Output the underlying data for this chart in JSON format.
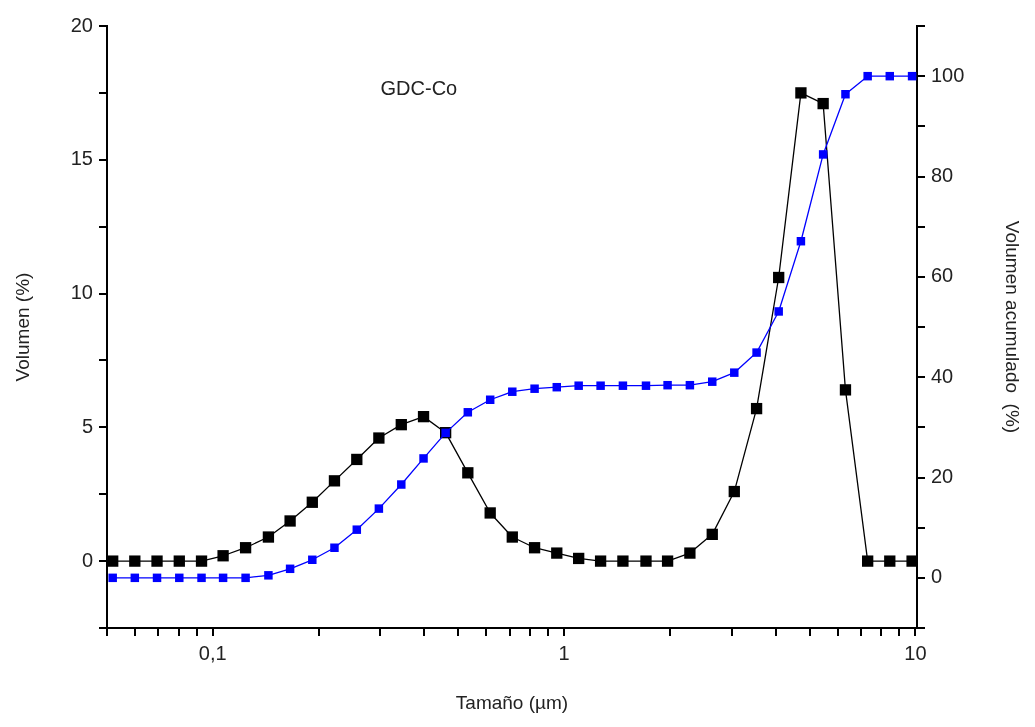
{
  "chart_data": {
    "type": "line",
    "xlabel": "Tamaño (µm)",
    "ylabel": "Volumen (%)",
    "y2label": "Volumen acumulado  (%)",
    "annotations": [
      "GDC-Co"
    ],
    "log": "x",
    "grid": false,
    "legend": false,
    "marker": "square",
    "line_style": "solid",
    "xlim": [
      0.05,
      10.1
    ],
    "xticks": [
      {
        "value": 0.05,
        "label": null
      },
      {
        "value": 0.06,
        "label": null
      },
      {
        "value": 0.07,
        "label": null
      },
      {
        "value": 0.08,
        "label": null
      },
      {
        "value": 0.09,
        "label": null
      },
      {
        "value": 0.1,
        "label": "0,1"
      },
      {
        "value": 0.2,
        "label": null
      },
      {
        "value": 0.3,
        "label": null
      },
      {
        "value": 0.4,
        "label": null
      },
      {
        "value": 0.5,
        "label": null
      },
      {
        "value": 0.6,
        "label": null
      },
      {
        "value": 0.7,
        "label": null
      },
      {
        "value": 0.8,
        "label": null
      },
      {
        "value": 0.9,
        "label": null
      },
      1,
      {
        "value": 2,
        "label": null
      },
      {
        "value": 3,
        "label": null
      },
      {
        "value": 4,
        "label": null
      },
      {
        "value": 5,
        "label": null
      },
      {
        "value": 6,
        "label": null
      },
      {
        "value": 7,
        "label": null
      },
      {
        "value": 8,
        "label": null
      },
      {
        "value": 9,
        "label": null
      },
      10
    ],
    "ylim": [
      -2.5,
      20
    ],
    "yticks": [
      {
        "value": -2.5,
        "label": null
      },
      0,
      {
        "value": 2.5,
        "label": null
      },
      5,
      {
        "value": 7.5,
        "label": null
      },
      10,
      {
        "value": 12.5,
        "label": null
      },
      15,
      {
        "value": 17.5,
        "label": null
      },
      20
    ],
    "y2lim": [
      -10,
      110
    ],
    "y2ticks": [
      {
        "value": -10,
        "label": null
      },
      0,
      {
        "value": 10,
        "label": null
      },
      20,
      {
        "value": 30,
        "label": null
      },
      40,
      {
        "value": 50,
        "label": null
      },
      60,
      {
        "value": 70,
        "label": null
      },
      80,
      {
        "value": 90,
        "label": null
      },
      100,
      {
        "value": 110,
        "label": null
      }
    ],
    "x": [
      0.0519,
      0.06,
      0.0694,
      0.0803,
      0.0929,
      0.107,
      0.124,
      0.144,
      0.166,
      0.192,
      0.222,
      0.257,
      0.297,
      0.344,
      0.398,
      0.46,
      0.532,
      0.616,
      0.712,
      0.824,
      0.953,
      1.1,
      1.27,
      1.47,
      1.71,
      1.97,
      2.28,
      2.64,
      3.05,
      3.53,
      4.08,
      4.72,
      5.46,
      6.32,
      7.31,
      8.45,
      9.78
    ],
    "series": [
      {
        "color": "#000000",
        "values": [
          0,
          0,
          0,
          0,
          0,
          0.2,
          0.5,
          0.9,
          1.5,
          2.2,
          3.0,
          3.8,
          4.6,
          5.1,
          5.4,
          4.8,
          3.3,
          1.8,
          0.9,
          0.5,
          0.3,
          0.1,
          0,
          0,
          0,
          0,
          0.3,
          1.0,
          2.6,
          5.7,
          10.6,
          17.5,
          17.1,
          6.4,
          0,
          0,
          0
        ]
      },
      {
        "color": "#0000ff",
        "axis": "y2",
        "values": [
          0,
          0,
          0,
          0,
          0,
          0,
          0,
          0.5,
          1.8,
          3.6,
          6.0,
          9.6,
          13.8,
          18.6,
          23.8,
          28.9,
          33.0,
          35.5,
          37.1,
          37.7,
          38.0,
          38.3,
          38.3,
          38.3,
          38.3,
          38.4,
          38.4,
          39.1,
          40.9,
          44.9,
          53.1,
          67.1,
          84.4,
          96.4,
          100,
          100,
          100
        ]
      }
    ]
  }
}
